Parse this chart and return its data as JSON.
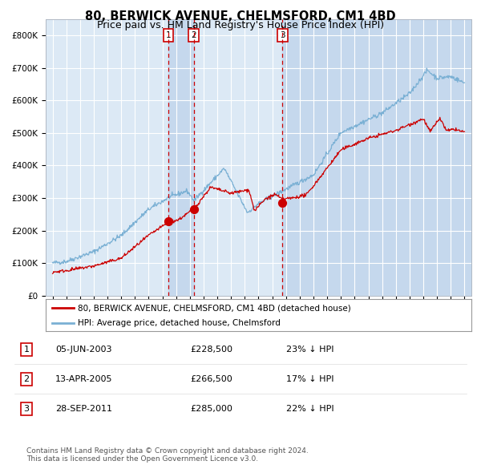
{
  "title": "80, BERWICK AVENUE, CHELMSFORD, CM1 4BD",
  "subtitle": "Price paid vs. HM Land Registry's House Price Index (HPI)",
  "title_fontsize": 10.5,
  "subtitle_fontsize": 9,
  "plot_bg_color": "#dce9f5",
  "legend_label_red": "80, BERWICK AVENUE, CHELMSFORD, CM1 4BD (detached house)",
  "legend_label_blue": "HPI: Average price, detached house, Chelmsford",
  "footer": "Contains HM Land Registry data © Crown copyright and database right 2024.\nThis data is licensed under the Open Government Licence v3.0.",
  "transactions": [
    {
      "num": 1,
      "date": "05-JUN-2003",
      "price": 228500,
      "price_str": "£228,500",
      "pct": "23%",
      "dir": "↓",
      "year_x": 2003.43
    },
    {
      "num": 2,
      "date": "13-APR-2005",
      "price": 266500,
      "price_str": "£266,500",
      "pct": "17%",
      "dir": "↓",
      "year_x": 2005.28
    },
    {
      "num": 3,
      "date": "28-SEP-2011",
      "price": 285000,
      "price_str": "£285,000",
      "pct": "22%",
      "dir": "↓",
      "year_x": 2011.74
    }
  ],
  "ylim": [
    0,
    850000
  ],
  "yticks": [
    0,
    100000,
    200000,
    300000,
    400000,
    500000,
    600000,
    700000,
    800000
  ],
  "ytick_labels": [
    "£0",
    "£100K",
    "£200K",
    "£300K",
    "£400K",
    "£500K",
    "£600K",
    "£700K",
    "£800K"
  ],
  "xlim_start": 1994.5,
  "xlim_end": 2025.5,
  "red_color": "#cc0000",
  "blue_color": "#7ab0d4",
  "dashed_color": "#cc0000",
  "highlight_color": "#c8d8ee",
  "grid_color": "#c0ccd8",
  "box_color": "#cc0000"
}
